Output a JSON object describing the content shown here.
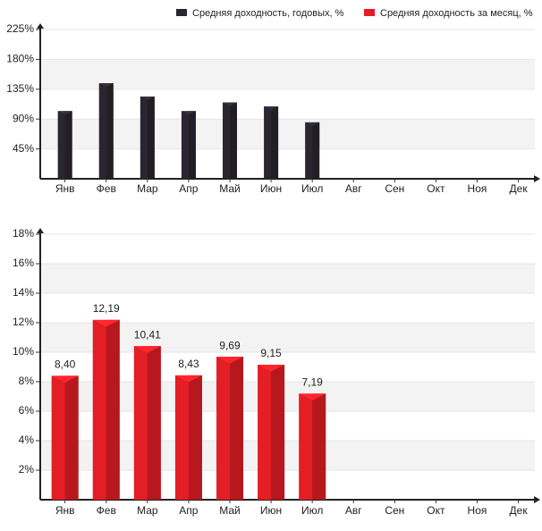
{
  "chart_data": [
    {
      "type": "bar",
      "categories": [
        "Янв",
        "Фев",
        "Мар",
        "Апр",
        "Май",
        "Июн",
        "Июл",
        "Авг",
        "Сен",
        "Окт",
        "Ноя",
        "Дек"
      ],
      "series": [
        {
          "name": "Средняя доходность, годовых, %",
          "color": "#2a2630",
          "values": [
            102,
            144,
            124,
            102,
            115,
            109,
            85,
            null,
            null,
            null,
            null,
            null
          ]
        }
      ],
      "ylim": [
        0,
        225
      ],
      "yticks": [
        {
          "value": 45,
          "label": "45%"
        },
        {
          "value": 90,
          "label": "90%"
        },
        {
          "value": 135,
          "label": "135%"
        },
        {
          "value": 180,
          "label": "180%"
        },
        {
          "value": 225,
          "label": "225%"
        }
      ],
      "grid": true,
      "legend": "top"
    },
    {
      "type": "bar",
      "categories": [
        "Янв",
        "Фев",
        "Мар",
        "Апр",
        "Май",
        "Июн",
        "Июл",
        "Авг",
        "Сен",
        "Окт",
        "Ноя",
        "Дек"
      ],
      "series": [
        {
          "name": "Средняя доходность за месяц, %",
          "color": "#e31e24",
          "values": [
            8.4,
            12.19,
            10.41,
            8.43,
            9.69,
            9.15,
            7.19,
            null,
            null,
            null,
            null,
            null
          ],
          "value_labels": [
            "8,40",
            "12,19",
            "10,41",
            "8,43",
            "9,69",
            "9,15",
            "7,19",
            null,
            null,
            null,
            null,
            null
          ]
        }
      ],
      "ylim": [
        0,
        18
      ],
      "yticks": [
        {
          "value": 2,
          "label": "2%"
        },
        {
          "value": 4,
          "label": "4%"
        },
        {
          "value": 6,
          "label": "6%"
        },
        {
          "value": 8,
          "label": "8%"
        },
        {
          "value": 10,
          "label": "10%"
        },
        {
          "value": 12,
          "label": "12%"
        },
        {
          "value": 14,
          "label": "14%"
        },
        {
          "value": 16,
          "label": "16%"
        },
        {
          "value": 18,
          "label": "18%"
        }
      ],
      "grid": true,
      "legend": "top"
    }
  ]
}
